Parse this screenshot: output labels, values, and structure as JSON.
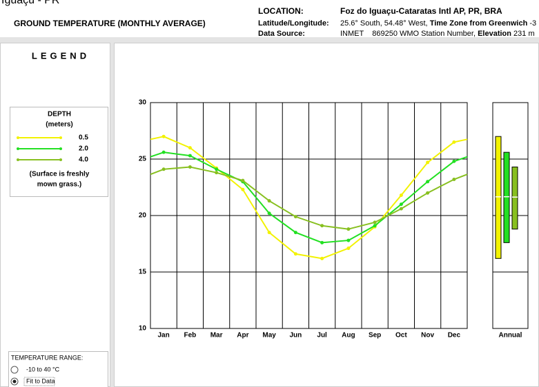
{
  "header": {
    "cut_title": "Iguaçu - PR",
    "title": "GROUND TEMPERATURE (MONTHLY AVERAGE)",
    "location_label": "LOCATION:",
    "location": "Foz do Iguaçu-Cataratas Intl AP, PR, BRA",
    "latlon_label": "Latitude/Longitude:",
    "latlon": "25.6° South, 54.48° West, ",
    "tz_label": "Time Zone from Greenwich",
    "tz": " -3",
    "source_label": "Data Source:",
    "source": "INMET",
    "station": "869250 WMO Station Number, ",
    "elevation_label": "Elevation",
    "elevation": " 231 m"
  },
  "legend_panel": {
    "title": "LEGEND",
    "depth": "DEPTH",
    "unit": "(meters)",
    "note_1": "(Surface is freshly",
    "note_2": "mown grass.)"
  },
  "range_panel": {
    "title": "TEMPERATURE RANGE:",
    "options": [
      "-10 to 40 °C",
      "Fit to Data"
    ],
    "selected": 1
  },
  "chart_data": {
    "type": "line",
    "categories": [
      "Jan",
      "Feb",
      "Mar",
      "Apr",
      "May",
      "Jun",
      "Jul",
      "Aug",
      "Sep",
      "Oct",
      "Nov",
      "Dec"
    ],
    "annual_label": "Annual",
    "ylim": [
      10,
      30
    ],
    "yticks": [
      10,
      15,
      20,
      25,
      30
    ],
    "grid": true,
    "series": [
      {
        "name": "0.5",
        "color": "#f2f200",
        "values": [
          27.0,
          26.0,
          24.2,
          22.3,
          18.5,
          16.6,
          16.2,
          17.1,
          19.0,
          21.8,
          24.7,
          26.5
        ]
      },
      {
        "name": "2.0",
        "color": "#22e022",
        "values": [
          25.6,
          25.3,
          24.1,
          23.0,
          20.2,
          18.5,
          17.6,
          17.8,
          19.1,
          21.0,
          23.0,
          24.8
        ]
      },
      {
        "name": "4.0",
        "color": "#88c020",
        "values": [
          24.1,
          24.3,
          23.8,
          23.1,
          21.3,
          19.9,
          19.1,
          18.8,
          19.4,
          20.6,
          22.0,
          23.2
        ]
      }
    ]
  }
}
